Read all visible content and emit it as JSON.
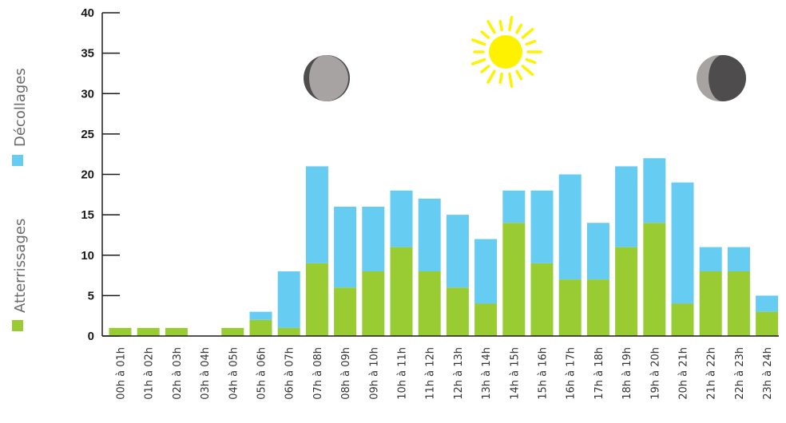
{
  "chart_data": {
    "type": "bar",
    "stacked": true,
    "categories": [
      "00h à 01h",
      "01h à 02h",
      "02h à 03h",
      "03h à 04h",
      "04h à 05h",
      "05h à 06h",
      "06h à 07h",
      "07h à 08h",
      "08h à 09h",
      "09h à 10h",
      "10h à 11h",
      "11h à 12h",
      "12h à 13h",
      "13h à 14h",
      "14h à 15h",
      "15h à 16h",
      "16h à 17h",
      "17h à 18h",
      "18h à 19h",
      "19h à 20h",
      "20h à 21h",
      "21h à 22h",
      "22h à 23h",
      "23h à 24h"
    ],
    "series": [
      {
        "name": "Atterrissages",
        "color": "#99cc33",
        "values": [
          1,
          1,
          1,
          0,
          1,
          2,
          1,
          9,
          6,
          8,
          11,
          8,
          6,
          4,
          14,
          9,
          7,
          7,
          11,
          14,
          4,
          8,
          8,
          3
        ]
      },
      {
        "name": "Décollages",
        "color": "#66ccf2",
        "values": [
          0,
          0,
          0,
          0,
          0,
          1,
          7,
          12,
          10,
          8,
          7,
          9,
          9,
          8,
          4,
          9,
          13,
          7,
          10,
          8,
          15,
          3,
          3,
          2
        ]
      }
    ],
    "yticks": [
      0,
      5,
      10,
      15,
      20,
      25,
      30,
      35,
      40
    ],
    "ylim": [
      0,
      40
    ],
    "legend_position": "left",
    "grid": false,
    "icons": [
      "moon-icon",
      "sun-icon",
      "moon-icon"
    ]
  },
  "colors": {
    "axis": "#1a1a1a",
    "sun": "#fff200",
    "moon_light": "#a7a3a3",
    "moon_dark": "#4e4c4c"
  }
}
